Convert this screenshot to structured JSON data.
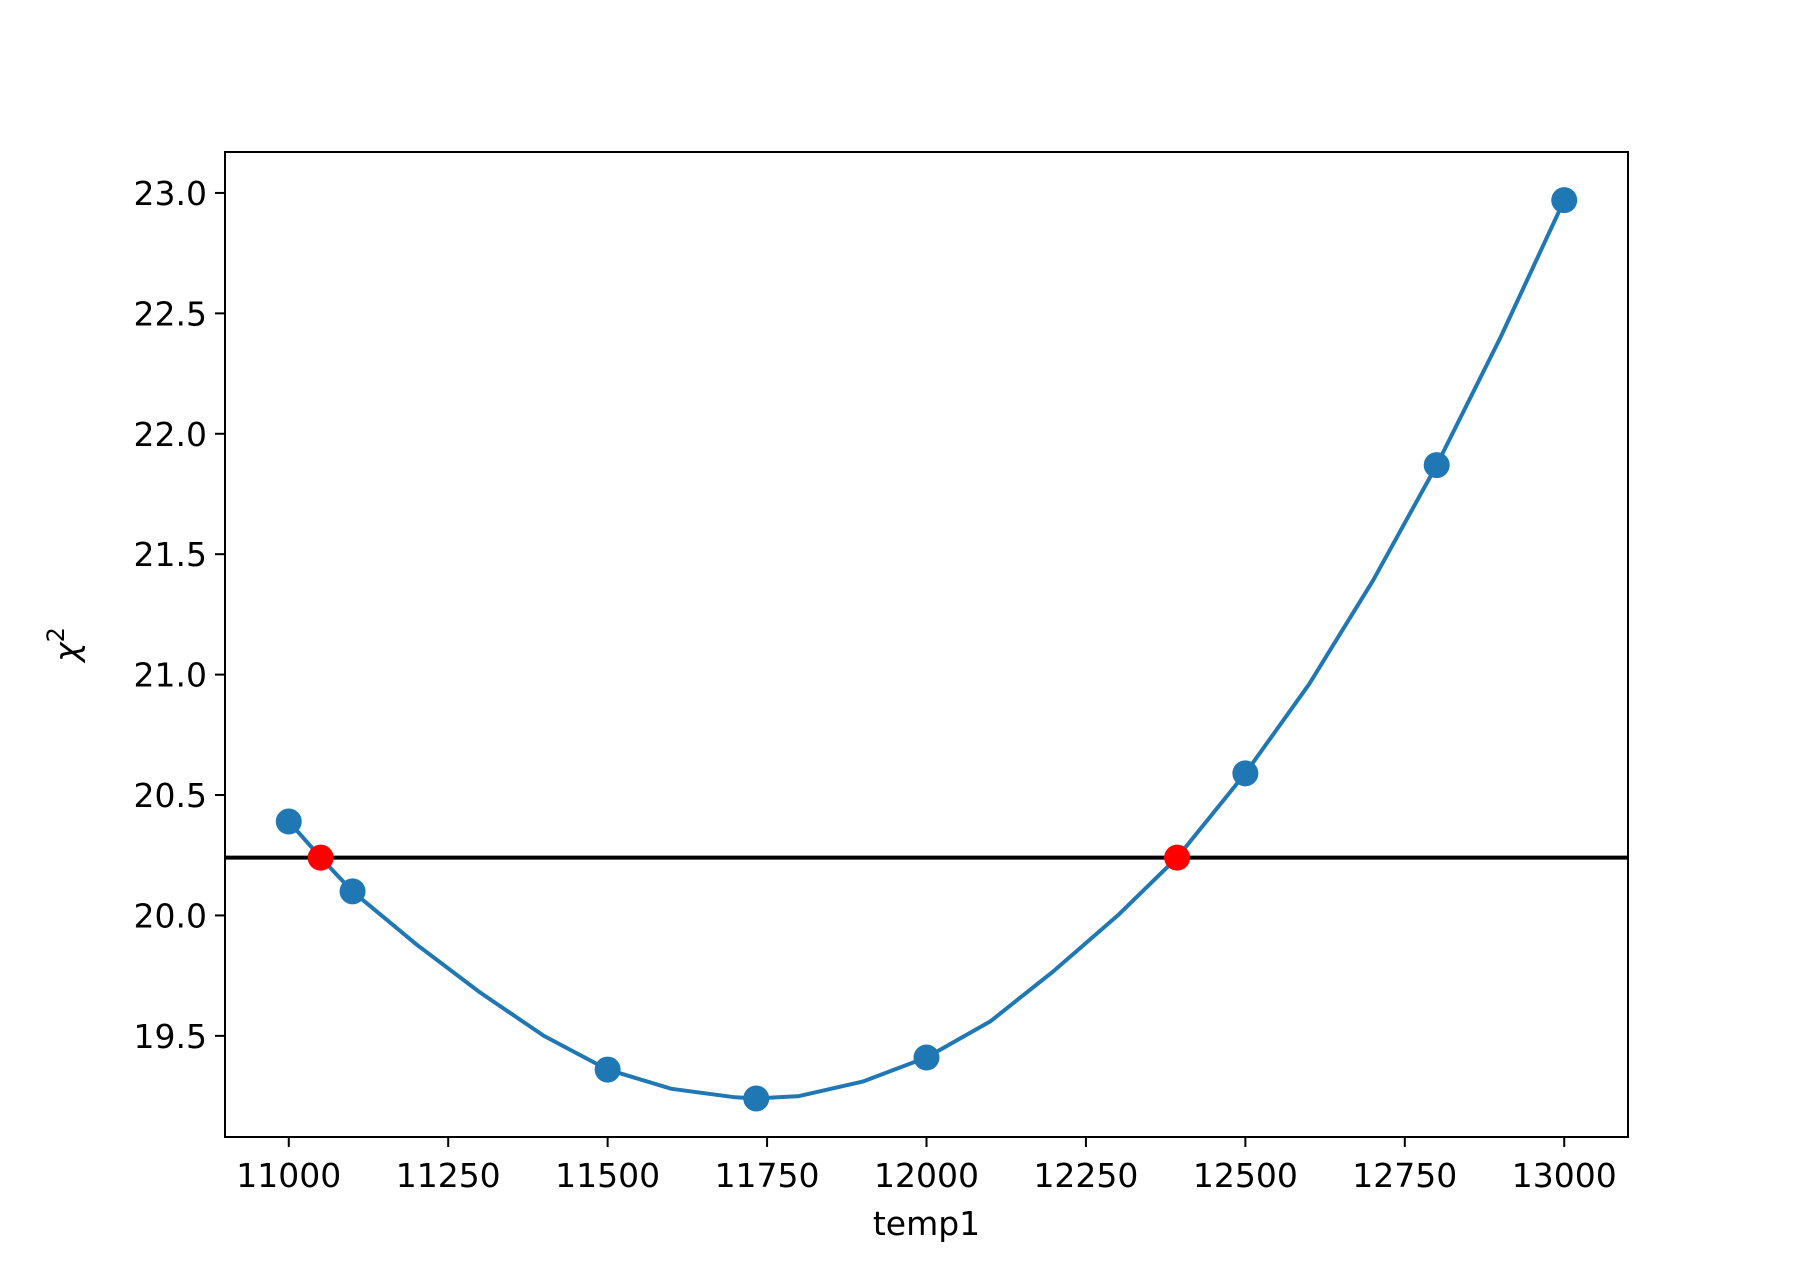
{
  "chart_data": {
    "type": "line",
    "title": "",
    "xlabel": "temp1",
    "ylabel": "χ",
    "ylabel_superscript": "2",
    "xlim": [
      10900,
      13100
    ],
    "ylim": [
      19.08,
      23.17
    ],
    "xticks": [
      11000,
      11250,
      11500,
      11750,
      12000,
      12250,
      12500,
      12750,
      13000
    ],
    "xtick_labels": [
      "11000",
      "11250",
      "11500",
      "11750",
      "12000",
      "12250",
      "12500",
      "12750",
      "13000"
    ],
    "yticks": [
      19.5,
      20.0,
      20.5,
      21.0,
      21.5,
      22.0,
      22.5,
      23.0
    ],
    "ytick_labels": [
      "19.5",
      "20.0",
      "20.5",
      "21.0",
      "21.5",
      "22.0",
      "22.5",
      "23.0"
    ],
    "grid": false,
    "series": [
      {
        "kind": "curve",
        "color": "#1f77b4",
        "x": [
          11000,
          11050,
          11100,
          11200,
          11300,
          11400,
          11500,
          11600,
          11700,
          11733,
          11800,
          11900,
          12000,
          12100,
          12200,
          12300,
          12393,
          12500,
          12600,
          12700,
          12800,
          12900,
          13000
        ],
        "y": [
          20.39,
          20.24,
          20.1,
          19.88,
          19.68,
          19.5,
          19.36,
          19.28,
          19.245,
          19.24,
          19.25,
          19.31,
          19.41,
          19.56,
          19.77,
          20.0,
          20.24,
          20.59,
          20.96,
          21.39,
          21.87,
          22.4,
          22.97
        ]
      },
      {
        "kind": "points",
        "color": "#1f77b4",
        "x": [
          11000,
          11100,
          11500,
          11733,
          12000,
          12500,
          12800,
          13000
        ],
        "y": [
          20.39,
          20.1,
          19.36,
          19.24,
          19.41,
          20.59,
          21.87,
          22.97
        ]
      },
      {
        "kind": "hline",
        "color": "#000000",
        "y": 20.24
      },
      {
        "kind": "points",
        "color": "#ff0000",
        "x": [
          11050,
          12393
        ],
        "y": [
          20.24,
          20.24
        ]
      }
    ]
  }
}
